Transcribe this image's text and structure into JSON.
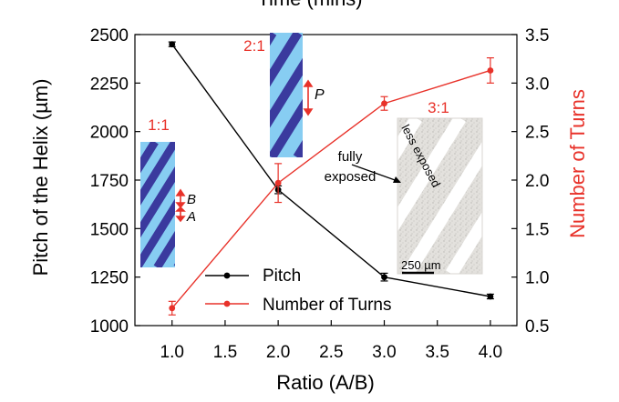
{
  "chart_data": {
    "type": "line",
    "top_axis_label": "Time (mins)",
    "xlabel": "Ratio (A/B)",
    "ylabel_left": "Pitch of the Helix (µm)",
    "ylabel_right": "Number of Turns",
    "xlim": [
      0.65,
      4.25
    ],
    "ylim_left": [
      1000,
      2500
    ],
    "ylim_right": [
      0.5,
      3.5
    ],
    "x_ticks": [
      "1.0",
      "1.5",
      "2.0",
      "2.5",
      "3.0",
      "3.5",
      "4.0"
    ],
    "y_left_ticks": [
      "1000",
      "1250",
      "1500",
      "1750",
      "2000",
      "2250",
      "2500"
    ],
    "y_right_ticks": [
      "0.5",
      "1.0",
      "1.5",
      "2.0",
      "2.5",
      "3.0",
      "3.5"
    ],
    "grid": false,
    "legend_position": "bottom-center",
    "series": [
      {
        "name": "Pitch",
        "axis": "left",
        "color": "#000000",
        "x": [
          1.0,
          2.0,
          3.0,
          4.0
        ],
        "values": [
          2450,
          1700,
          1250,
          1150
        ],
        "errors": [
          12,
          20,
          20,
          12
        ]
      },
      {
        "name": "Number of Turns",
        "axis": "right",
        "color": "#e8322a",
        "x": [
          1.0,
          2.0,
          3.0,
          4.0
        ],
        "values": [
          0.68,
          1.97,
          2.79,
          3.13
        ],
        "errors": [
          0.07,
          0.2,
          0.07,
          0.13
        ]
      }
    ],
    "annotations": {
      "ratio_11": "1:1",
      "ratio_21": "2:1",
      "ratio_31": "3:1",
      "label_b": "B",
      "label_a": "A",
      "label_p": "P",
      "fully_exposed": "fully\nexposed",
      "less_exposed": "less exposed",
      "scale_bar": "250 µm"
    },
    "colors": {
      "stripe_dark": "#3a3a9e",
      "stripe_light": "#87cdf2",
      "annotation_red": "#e8322a"
    }
  }
}
